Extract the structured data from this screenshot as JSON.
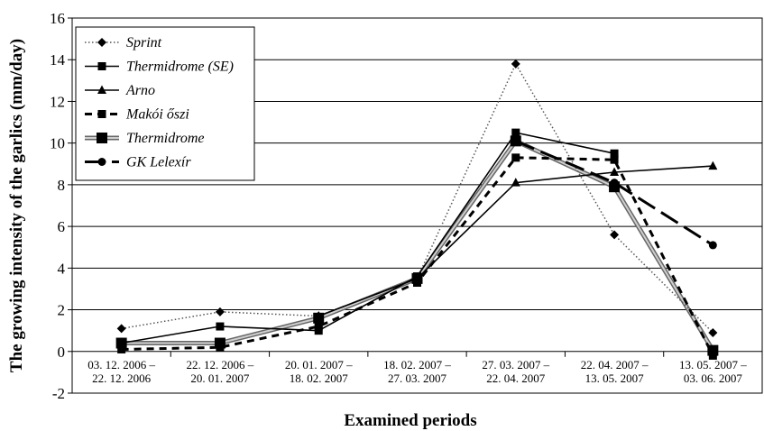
{
  "chart_data": {
    "type": "line",
    "xlabel": "Examined periods",
    "ylabel": "The growing intensity of the garlics (mm/day)",
    "ylim": [
      -2,
      16
    ],
    "yticks": [
      "-2",
      "0",
      "2",
      "4",
      "6",
      "8",
      "10",
      "12",
      "14",
      "16"
    ],
    "grid": "horizontal",
    "legend_position": "top-left",
    "categories": [
      [
        "03. 12. 2006 –",
        "22. 12. 2006"
      ],
      [
        "22. 12. 2006 –",
        "20. 01. 2007"
      ],
      [
        "20. 01. 2007 –",
        "18. 02. 2007"
      ],
      [
        "18. 02. 2007 –",
        "27. 03. 2007"
      ],
      [
        "27. 03. 2007 –",
        "22. 04. 2007"
      ],
      [
        "22. 04. 2007 –",
        "13. 05. 2007"
      ],
      [
        "13. 05. 2007 –",
        "03. 06. 2007"
      ]
    ],
    "series": [
      {
        "name": "Sprint",
        "values": [
          1.1,
          1.9,
          1.7,
          3.5,
          13.8,
          5.6,
          0.9
        ],
        "style": "dotted-thin",
        "marker": "diamond",
        "color": "#000000"
      },
      {
        "name": "Thermidrome (SE)",
        "values": [
          0.4,
          1.2,
          1.0,
          3.6,
          10.5,
          9.5,
          null
        ],
        "style": "solid-thin",
        "marker": "square",
        "color": "#000000"
      },
      {
        "name": "Arno",
        "values": [
          null,
          null,
          1.7,
          3.5,
          8.1,
          8.6,
          8.9
        ],
        "style": "solid-thin",
        "marker": "triangle",
        "color": "#000000"
      },
      {
        "name": "Makói őszi",
        "values": [
          0.1,
          0.2,
          1.2,
          3.3,
          9.3,
          9.2,
          -0.2
        ],
        "style": "dashed-thick",
        "marker": "square",
        "color": "#000000"
      },
      {
        "name": "Thermidrome",
        "values": [
          0.4,
          0.4,
          1.6,
          3.5,
          10.1,
          7.9,
          0.05
        ],
        "style": "double-gray",
        "marker": "big-square",
        "color": "#000000"
      },
      {
        "name": "GK Lelexír",
        "values": [
          null,
          null,
          null,
          null,
          10.1,
          8.1,
          5.1
        ],
        "style": "longdash-thick",
        "marker": "circle",
        "color": "#000000"
      }
    ]
  }
}
